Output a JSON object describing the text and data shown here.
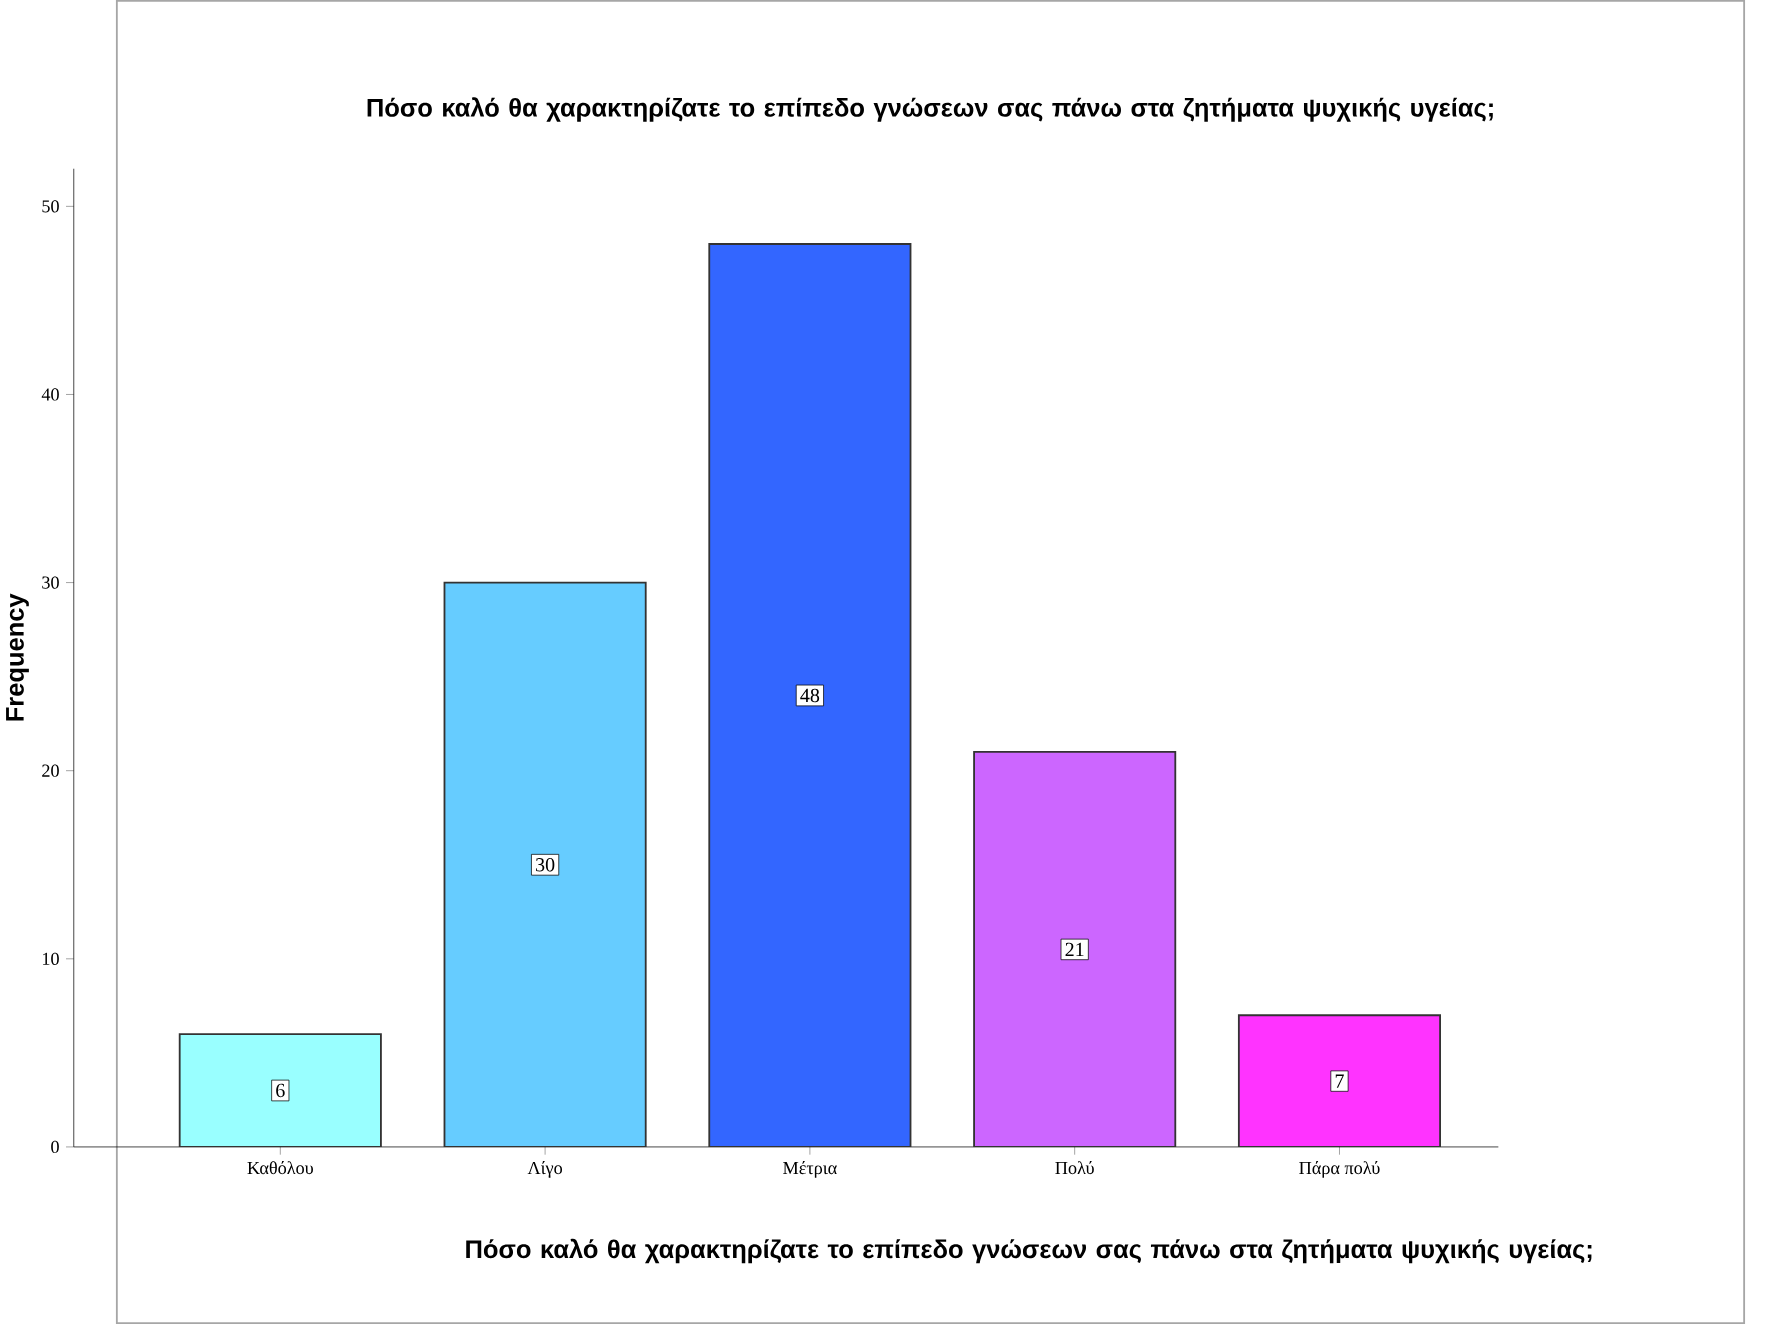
{
  "chart_data": {
    "type": "bar",
    "title": "Πόσο καλό θα χαρακτηρίζατε το επίπεδο γνώσεων σας πάνω στα ζητήματα ψυχικής υγείας;",
    "xlabel": "Πόσο καλό θα χαρακτηρίζατε το επίπεδο γνώσεων σας πάνω στα ζητήματα ψυχικής υγείας;",
    "ylabel": "Frequency",
    "categories": [
      "Καθόλου",
      "Λίγο",
      "Μέτρια",
      "Πολύ",
      "Πάρα πολύ"
    ],
    "values": [
      6,
      30,
      48,
      21,
      7
    ],
    "colors": [
      "#99ffff",
      "#66ccff",
      "#3366ff",
      "#cc66ff",
      "#ff33ff"
    ],
    "ylim": [
      0,
      52
    ],
    "yticks": [
      0,
      10,
      20,
      30,
      40,
      50
    ],
    "data_labels": true
  }
}
